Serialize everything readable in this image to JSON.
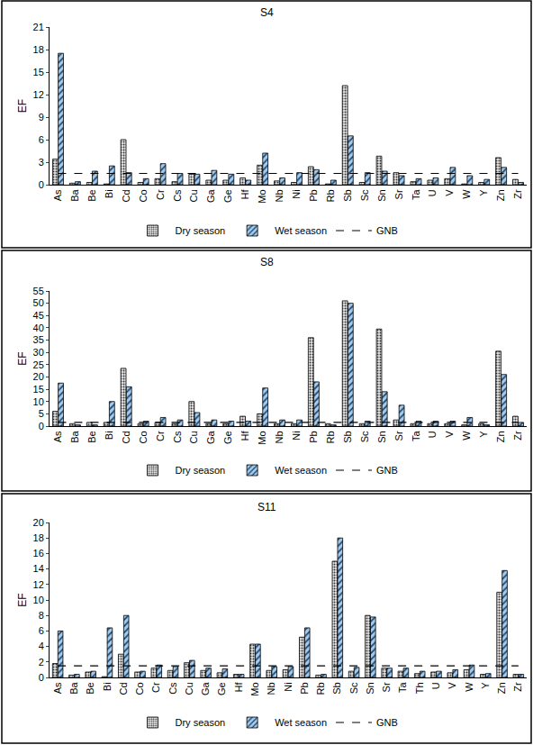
{
  "chart_data": [
    {
      "type": "bar",
      "title": "S4",
      "ylabel": "EF",
      "categories": [
        "As",
        "Ba",
        "Be",
        "Bi",
        "Cd",
        "Co",
        "Cr",
        "Cs",
        "Cu",
        "Ga",
        "Ge",
        "Hf",
        "Mo",
        "Nb",
        "Ni",
        "Pb",
        "Rb",
        "Sb",
        "Sc",
        "Sn",
        "Sr",
        "Ta",
        "U",
        "V",
        "W",
        "Y",
        "Zn",
        "Zr"
      ],
      "series": [
        {
          "name": "Dry season",
          "color": "#e8e8e8",
          "marker": "dots",
          "values": [
            3.4,
            0.2,
            0.3,
            0.1,
            6.0,
            0.3,
            0.8,
            0.4,
            1.4,
            0.6,
            0.6,
            0.9,
            2.6,
            0.5,
            0.3,
            2.4,
            0.1,
            13.2,
            0.3,
            3.8,
            1.6,
            0.4,
            0.6,
            0.8,
            0.1,
            0.3,
            3.6,
            0.7
          ]
        },
        {
          "name": "Wet season",
          "color": "#a9cbe8",
          "marker": "hatch",
          "values": [
            17.5,
            0.4,
            1.8,
            2.5,
            1.6,
            0.8,
            2.8,
            1.5,
            1.4,
            1.9,
            1.4,
            0.6,
            4.2,
            0.9,
            1.6,
            2.0,
            0.6,
            6.5,
            1.6,
            1.8,
            1.2,
            0.8,
            0.9,
            2.3,
            1.2,
            0.7,
            2.3,
            0.3
          ]
        },
        {
          "name": "GNB",
          "type": "line",
          "color": "#000000",
          "line_style": "dashed",
          "values": [
            1.5,
            1.5,
            1.5,
            1.5,
            1.5,
            1.5,
            1.5,
            1.5,
            1.5,
            1.5,
            1.5,
            1.5,
            1.5,
            1.5,
            1.5,
            1.5,
            1.5,
            1.5,
            1.5,
            1.5,
            1.5,
            1.5,
            1.5,
            1.5,
            1.5,
            1.5,
            1.5,
            1.5
          ]
        }
      ],
      "ylim": [
        0,
        21
      ],
      "yticks": [
        0,
        3,
        6,
        9,
        12,
        15,
        18,
        21
      ],
      "grid": false,
      "legend": "bottom"
    },
    {
      "type": "bar",
      "title": "S8",
      "ylabel": "EF",
      "categories": [
        "As",
        "Ba",
        "Be",
        "Bi",
        "Cd",
        "Co",
        "Cr",
        "Cs",
        "Cu",
        "Ga",
        "Ge",
        "Hf",
        "Mo",
        "Nb",
        "Ni",
        "Pb",
        "Rb",
        "Sb",
        "Sc",
        "Sn",
        "Sr",
        "Ta",
        "U",
        "V",
        "W",
        "Y",
        "Zn",
        "Zr"
      ],
      "series": [
        {
          "name": "Dry season",
          "color": "#e8e8e8",
          "marker": "dots",
          "values": [
            6,
            1,
            1.5,
            1.5,
            23.5,
            1,
            1.5,
            1,
            10,
            1,
            1,
            4,
            5,
            1,
            1,
            36,
            1,
            51,
            1,
            39.5,
            2.5,
            1,
            1,
            1,
            0.5,
            1,
            30.5,
            4
          ]
        },
        {
          "name": "Wet season",
          "color": "#a9cbe8",
          "marker": "hatch",
          "values": [
            17.5,
            0.5,
            0.5,
            10,
            16,
            2,
            3.5,
            2.5,
            5.5,
            2.5,
            2,
            2,
            15.5,
            2.5,
            2.5,
            18,
            0.5,
            50,
            2,
            14,
            8.5,
            2,
            2,
            2,
            3.5,
            0.5,
            21,
            1.5
          ]
        },
        {
          "name": "GNB",
          "type": "line",
          "color": "#000000",
          "line_style": "dashed",
          "values": [
            1.5,
            1.5,
            1.5,
            1.5,
            1.5,
            1.5,
            1.5,
            1.5,
            1.5,
            1.5,
            1.5,
            1.5,
            1.5,
            1.5,
            1.5,
            1.5,
            1.5,
            1.5,
            1.5,
            1.5,
            1.5,
            1.5,
            1.5,
            1.5,
            1.5,
            1.5,
            1.5,
            1.5
          ]
        }
      ],
      "ylim": [
        0,
        55
      ],
      "yticks": [
        0,
        5,
        10,
        15,
        20,
        25,
        30,
        35,
        40,
        45,
        50,
        55
      ],
      "grid": false,
      "legend": "bottom"
    },
    {
      "type": "bar",
      "title": "S11",
      "ylabel": "EF",
      "categories": [
        "As",
        "Ba",
        "Be",
        "Bi",
        "Cd",
        "Co",
        "Cr",
        "Cs",
        "Cu",
        "Ga",
        "Ge",
        "Hf",
        "Mo",
        "Nb",
        "Ni",
        "Pb",
        "Rb",
        "Sb",
        "Sc",
        "Sn",
        "Sr",
        "Ta",
        "Th",
        "U",
        "V",
        "W",
        "Y",
        "Zn",
        "Zr"
      ],
      "series": [
        {
          "name": "Dry season",
          "color": "#e8e8e8",
          "marker": "dots",
          "values": [
            1.8,
            0.3,
            0.7,
            0.1,
            3,
            0.7,
            1.2,
            0.9,
            1.9,
            0.9,
            0.6,
            0.4,
            4.3,
            0.9,
            1.0,
            5.2,
            0.3,
            15,
            0.8,
            8,
            1.2,
            0.8,
            0.5,
            0.7,
            0.6,
            1.0,
            0.4,
            11,
            0.4
          ]
        },
        {
          "name": "Wet season",
          "color": "#a9cbe8",
          "marker": "hatch",
          "values": [
            6,
            0.4,
            0.8,
            6.4,
            8,
            0.8,
            1.6,
            1.4,
            2.2,
            1.2,
            1.1,
            0.4,
            4.3,
            1.4,
            1.4,
            6.4,
            0.4,
            18,
            1.3,
            7.8,
            1.2,
            1.2,
            0.8,
            0.8,
            1.0,
            1.6,
            0.5,
            13.8,
            0.4
          ]
        },
        {
          "name": "GNB",
          "type": "line",
          "color": "#000000",
          "line_style": "dashed",
          "values": [
            1.5,
            1.5,
            1.5,
            1.5,
            1.5,
            1.5,
            1.5,
            1.5,
            1.5,
            1.5,
            1.5,
            1.5,
            1.5,
            1.5,
            1.5,
            1.5,
            1.5,
            1.5,
            1.5,
            1.5,
            1.5,
            1.5,
            1.5,
            1.5,
            1.5,
            1.5,
            1.5,
            1.5,
            1.5
          ]
        }
      ],
      "ylim": [
        0,
        20
      ],
      "yticks": [
        0,
        2,
        4,
        6,
        8,
        10,
        12,
        14,
        16,
        18,
        20
      ],
      "grid": false,
      "legend": "bottom"
    }
  ]
}
